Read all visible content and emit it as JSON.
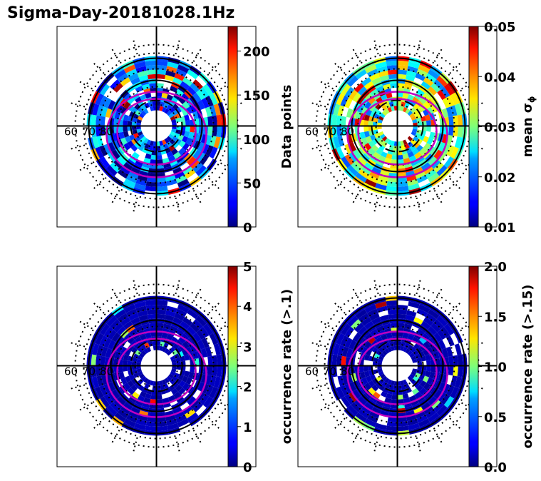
{
  "title": "Sigma-Day-20181028.1Hz",
  "chart_data": [
    {
      "type": "heatmap",
      "projection": "polar",
      "panel": "top-left",
      "colormap": "jet",
      "colorbar": {
        "label": "Data points",
        "range": [
          0,
          228
        ],
        "ticks": [
          "0",
          "50",
          "100",
          "150",
          "200"
        ],
        "tick_values": [
          0,
          50,
          100,
          150,
          200
        ]
      },
      "ring_labels": [
        "60",
        "70",
        "80"
      ],
      "dominant_level": 0.2,
      "grid": true
    },
    {
      "type": "heatmap",
      "projection": "polar",
      "panel": "top-right",
      "colormap": "jet",
      "colorbar": {
        "label": "mean σ",
        "label_sub": "ϕ",
        "range": [
          0.01,
          0.05
        ],
        "ticks": [
          "0.01",
          "0.02",
          "0.03",
          "0.04",
          "0.05"
        ],
        "tick_values": [
          0.01,
          0.02,
          0.03,
          0.04,
          0.05
        ]
      },
      "ring_labels": [
        "60",
        "70",
        "80"
      ],
      "dominant_level": 0.45,
      "grid": true
    },
    {
      "type": "heatmap",
      "projection": "polar",
      "panel": "bottom-left",
      "colormap": "jet",
      "colorbar": {
        "label": "occurrence rate (>.1)",
        "range": [
          0,
          5
        ],
        "ticks": [
          "0",
          "1",
          "2",
          "3",
          "4",
          "5"
        ],
        "tick_values": [
          0,
          1,
          2,
          3,
          4,
          5
        ]
      },
      "ring_labels": [
        "60",
        "70",
        "80"
      ],
      "dominant_level": 0.03,
      "grid": true
    },
    {
      "type": "heatmap",
      "projection": "polar",
      "panel": "bottom-right",
      "colormap": "jet",
      "colorbar": {
        "label": "occurrence rate (>.15)",
        "range": [
          0.0,
          2.0
        ],
        "ticks": [
          "0.0",
          "0.5",
          "1.0",
          "1.5",
          "2.0"
        ],
        "tick_values": [
          0.0,
          0.5,
          1.0,
          1.5,
          2.0
        ]
      },
      "ring_labels": [
        "60",
        "70",
        "80"
      ],
      "dominant_level": 0.03,
      "grid": true
    }
  ]
}
